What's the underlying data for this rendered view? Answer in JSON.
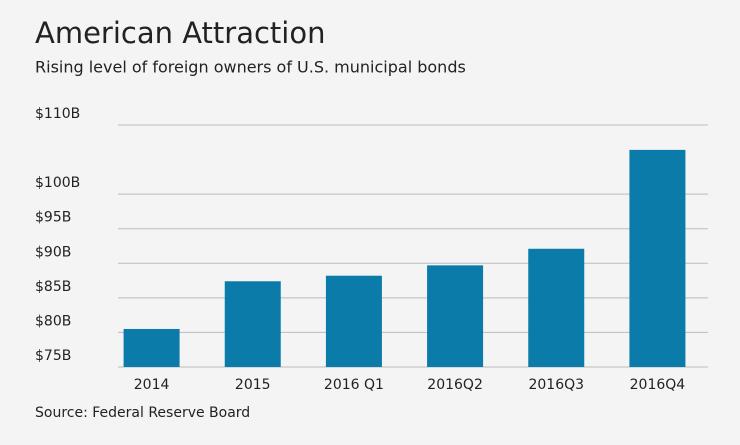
{
  "chart_data": {
    "type": "bar",
    "title": "American Attraction",
    "subtitle": "Rising level of foreign owners of U.S. municipal bonds",
    "source": "Source: Federal Reserve Board",
    "categories": [
      "2014",
      "2015",
      "2016 Q1",
      "2016Q2",
      "2016Q3",
      "2016Q4"
    ],
    "values": [
      80.5,
      87.4,
      88.2,
      89.7,
      92.1,
      106.4
    ],
    "color": "#0b7ba9",
    "ylim": [
      75,
      110
    ],
    "yticks": [
      {
        "value": 75,
        "label": "$75B"
      },
      {
        "value": 80,
        "label": "$80B"
      },
      {
        "value": 85,
        "label": "$85B"
      },
      {
        "value": 90,
        "label": "$90B"
      },
      {
        "value": 95,
        "label": "$95B"
      },
      {
        "value": 100,
        "label": "$100B"
      },
      {
        "value": 110,
        "label": "$110B"
      }
    ],
    "grid": true
  }
}
